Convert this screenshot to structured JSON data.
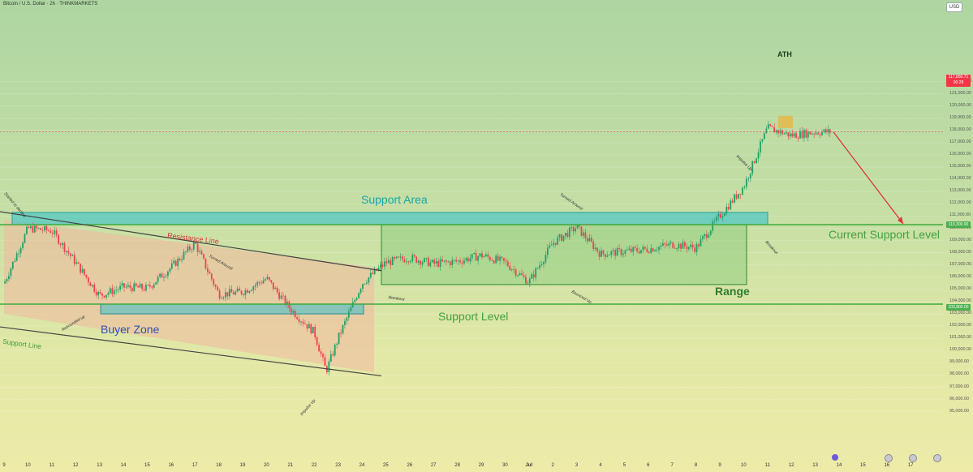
{
  "header": {
    "symbol_title": "Bitcoin / U.S. Dollar · 2h · THINKMARKETS",
    "currency_label": "USD"
  },
  "price_scale": {
    "ticks": [
      "122,000.00",
      "121,000.00",
      "120,000.00",
      "119,000.00",
      "118,000.00",
      "117,000.00",
      "116,000.00",
      "115,000.00",
      "114,000.00",
      "113,000.00",
      "112,000.00",
      "111,000.00",
      "110,000.00",
      "109,000.00",
      "108,000.00",
      "107,000.00",
      "106,000.00",
      "105,000.00",
      "104,000.00",
      "103,000.00",
      "102,000.00",
      "101,000.00",
      "100,000.00",
      "99,000.00",
      "98,000.00",
      "97,000.00",
      "96,000.00",
      "95,000.00"
    ],
    "current_price_label": "117,880.71",
    "countdown_label": "00:28",
    "current_support_price_label": "110,300.00",
    "support_price_label": "103,800.00"
  },
  "time_axis": {
    "labels": [
      "9",
      "10",
      "11",
      "12",
      "13",
      "14",
      "15",
      "16",
      "17",
      "18",
      "19",
      "20",
      "21",
      "22",
      "23",
      "24",
      "25",
      "26",
      "27",
      "28",
      "29",
      "30",
      "Jul",
      "2",
      "3",
      "4",
      "5",
      "6",
      "7",
      "8",
      "9",
      "10",
      "11",
      "12",
      "13",
      "14",
      "15",
      "16",
      "17"
    ]
  },
  "annotations": {
    "support_area": "Support Area",
    "current_support_level": "Current Support Level",
    "support_level": "Support Level",
    "range": "Range",
    "buyer_zone": "Buyer Zone",
    "resistance_line": "Resistance Line",
    "support_line": "Support Line",
    "ath": "ATH",
    "started_to_decline": "Started to decline",
    "turned_around_1": "Turned Around",
    "turned_around_2": "Turned Around",
    "rebounded_up": "Rebounded up",
    "impulse_up_1": "Impulse Up",
    "impulse_up_2": "Impulse Up",
    "breakout_1": "Breakout",
    "breakout_2": "Breakout",
    "bounced_up": "Bounced Up"
  },
  "colors": {
    "up_candle": "#22a06b",
    "down_candle": "#ef4350",
    "support_area_fill": "#4cc6c6",
    "range_fill": "#86c97a",
    "buyer_zone_fill": "#69c2c2",
    "channel_fill": "#f2b8a0",
    "level_line": "#3ea93e",
    "channel_line": "#444444",
    "projection_arrow": "#d9363e",
    "ath_box": "#e6b84a"
  },
  "chart_data": {
    "type": "candlestick",
    "symbol": "Bitcoin / U.S. Dollar",
    "interval": "2h",
    "source": "THINKMARKETS",
    "y_range": [
      95000,
      122000
    ],
    "x_range": [
      "Jun 9",
      "Jul 17"
    ],
    "current_price": 117880.71,
    "approx_close_path": [
      {
        "date": "Jun 9",
        "price": 105500
      },
      {
        "date": "Jun 10",
        "price": 110000
      },
      {
        "date": "Jun 11",
        "price": 109800
      },
      {
        "date": "Jun 12",
        "price": 107200
      },
      {
        "date": "Jun 13",
        "price": 104500
      },
      {
        "date": "Jun 14",
        "price": 105200
      },
      {
        "date": "Jun 15",
        "price": 105100
      },
      {
        "date": "Jun 16",
        "price": 106800
      },
      {
        "date": "Jun 17",
        "price": 108800
      },
      {
        "date": "Jun 18",
        "price": 104600
      },
      {
        "date": "Jun 19",
        "price": 104800
      },
      {
        "date": "Jun 20",
        "price": 105900
      },
      {
        "date": "Jun 21",
        "price": 103400
      },
      {
        "date": "Jun 22",
        "price": 101500
      },
      {
        "date": "Jun 22.5",
        "price": 98300
      },
      {
        "date": "Jun 23",
        "price": 101000
      },
      {
        "date": "Jun 24",
        "price": 105500
      },
      {
        "date": "Jun 25",
        "price": 107200
      },
      {
        "date": "Jun 26",
        "price": 107600
      },
      {
        "date": "Jun 27",
        "price": 107100
      },
      {
        "date": "Jun 28",
        "price": 107300
      },
      {
        "date": "Jun 29",
        "price": 107800
      },
      {
        "date": "Jun 30",
        "price": 107200
      },
      {
        "date": "Jul 1",
        "price": 105600
      },
      {
        "date": "Jul 2",
        "price": 108800
      },
      {
        "date": "Jul 3",
        "price": 110100
      },
      {
        "date": "Jul 4",
        "price": 107900
      },
      {
        "date": "Jul 5",
        "price": 108100
      },
      {
        "date": "Jul 6",
        "price": 108300
      },
      {
        "date": "Jul 7",
        "price": 108700
      },
      {
        "date": "Jul 8",
        "price": 108400
      },
      {
        "date": "Jul 9",
        "price": 111000
      },
      {
        "date": "Jul 10",
        "price": 113400
      },
      {
        "date": "Jul 11",
        "price": 118200
      },
      {
        "date": "Jul 12",
        "price": 117600
      },
      {
        "date": "Jul 13",
        "price": 117880
      }
    ],
    "levels": [
      {
        "name": "Current Support Level",
        "price": 110300
      },
      {
        "name": "Support Level",
        "price": 103800
      }
    ],
    "zones": [
      {
        "name": "Support Area",
        "from": "Jun 9",
        "to": "Jul 10",
        "low": 110300,
        "high": 111300
      },
      {
        "name": "Range",
        "from": "Jun 24",
        "to": "Jul 9",
        "low": 105400,
        "high": 110300
      },
      {
        "name": "Buyer Zone",
        "from": "Jun 13",
        "to": "Jun 24",
        "low": 103000,
        "high": 103800
      }
    ],
    "channel": {
      "resistance_line": [
        {
          "date": "Jun 9",
          "price": 110700
        },
        {
          "date": "Jun 24",
          "price": 106800
        }
      ],
      "support_line": [
        {
          "date": "Jun 9",
          "price": 103000
        },
        {
          "date": "Jun 24",
          "price": 98200
        }
      ]
    },
    "ath_zone": {
      "date": "Jul 11",
      "low": 118200,
      "high": 119200
    },
    "projection": {
      "from": {
        "date": "Jul 13",
        "price": 117880
      },
      "to": {
        "date": "Jul 16",
        "price": 110300
      }
    }
  }
}
